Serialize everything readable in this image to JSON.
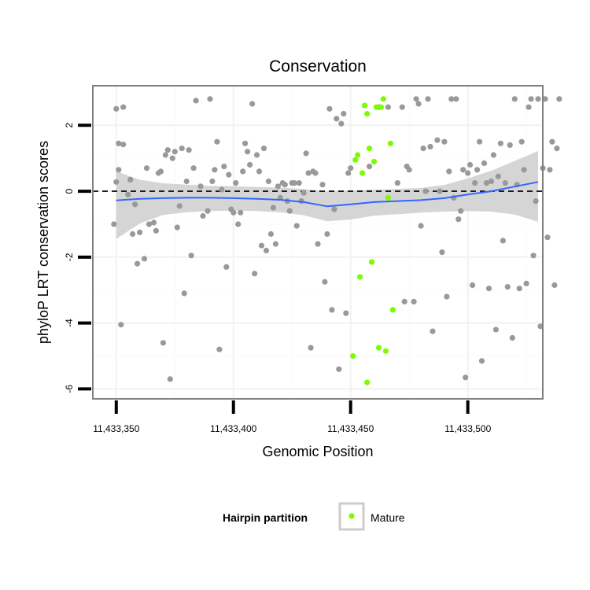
{
  "chart_data": {
    "type": "scatter",
    "title": "Conservation",
    "xlabel": "Genomic Position",
    "ylabel": "phyloP LRT conservation scores",
    "xlim": [
      11433340,
      11433532
    ],
    "ylim": [
      -6.3,
      3.2
    ],
    "x_ticks": [
      11433350,
      11433400,
      11433450,
      11433500
    ],
    "x_tick_labels": [
      "11,433,350",
      "11,433,400",
      "11,433,450",
      "11,433,500"
    ],
    "y_ticks": [
      2,
      0,
      -2,
      -4,
      -6
    ],
    "y_tick_labels": [
      "2",
      "0",
      "-2",
      "-4",
      "-6"
    ],
    "reference_line": {
      "y": 0,
      "style": "dashed"
    },
    "grid": true,
    "legend": {
      "title": "Hairpin partition",
      "position": "bottom",
      "entries": [
        {
          "label": "Mature",
          "color": "#7cfc00"
        }
      ]
    },
    "colors": {
      "other": "#999999",
      "mature": "#7cfc00",
      "smooth": "#3366ff",
      "band": "#d3d3d3"
    },
    "smooth": {
      "x": [
        11433350,
        11433360,
        11433370,
        11433380,
        11433390,
        11433400,
        11433410,
        11433420,
        11433430,
        11433440,
        11433450,
        11433460,
        11433470,
        11433480,
        11433490,
        11433500,
        11433510,
        11433520,
        11433530
      ],
      "y": [
        -0.28,
        -0.23,
        -0.21,
        -0.2,
        -0.2,
        -0.21,
        -0.23,
        -0.26,
        -0.33,
        -0.46,
        -0.4,
        -0.33,
        -0.3,
        -0.27,
        -0.21,
        -0.1,
        0.0,
        0.14,
        0.28
      ],
      "upper": [
        0.6,
        0.35,
        0.24,
        0.2,
        0.16,
        0.15,
        0.13,
        0.11,
        0.07,
        -0.01,
        0.02,
        0.05,
        0.07,
        0.1,
        0.19,
        0.39,
        0.62,
        0.92,
        1.22
      ],
      "lower": [
        -1.45,
        -0.98,
        -0.72,
        -0.64,
        -0.6,
        -0.59,
        -0.6,
        -0.64,
        -0.73,
        -0.91,
        -0.86,
        -0.74,
        -0.7,
        -0.65,
        -0.62,
        -0.6,
        -0.62,
        -0.71,
        -0.93
      ]
    },
    "series": [
      {
        "group": "other",
        "points": [
          [
            11433350,
            2.5
          ],
          [
            11433353,
            2.55
          ],
          [
            11433351,
            1.45
          ],
          [
            11433353,
            1.42
          ],
          [
            11433351,
            0.65
          ],
          [
            11433350,
            0.28
          ],
          [
            11433349,
            -1.0
          ],
          [
            11433352,
            -4.05
          ],
          [
            11433355,
            -0.1
          ],
          [
            11433356,
            0.35
          ],
          [
            11433358,
            -0.4
          ],
          [
            11433357,
            -1.3
          ],
          [
            11433359,
            -2.2
          ],
          [
            11433360,
            -1.25
          ],
          [
            11433362,
            -2.05
          ],
          [
            11433363,
            0.7
          ],
          [
            11433364,
            -1.0
          ],
          [
            11433366,
            -0.95
          ],
          [
            11433367,
            -1.2
          ],
          [
            11433368,
            0.55
          ],
          [
            11433369,
            0.6
          ],
          [
            11433370,
            -4.6
          ],
          [
            11433371,
            1.1
          ],
          [
            11433372,
            1.25
          ],
          [
            11433373,
            -5.7
          ],
          [
            11433374,
            1.0
          ],
          [
            11433375,
            1.2
          ],
          [
            11433376,
            -1.1
          ],
          [
            11433377,
            -0.45
          ],
          [
            11433378,
            1.3
          ],
          [
            11433379,
            -3.1
          ],
          [
            11433380,
            0.3
          ],
          [
            11433381,
            1.25
          ],
          [
            11433382,
            -1.95
          ],
          [
            11433383,
            0.7
          ],
          [
            11433384,
            2.75
          ],
          [
            11433386,
            0.15
          ],
          [
            11433387,
            -0.75
          ],
          [
            11433389,
            -0.6
          ],
          [
            11433390,
            2.8
          ],
          [
            11433391,
            0.3
          ],
          [
            11433392,
            0.65
          ],
          [
            11433393,
            1.5
          ],
          [
            11433394,
            -4.8
          ],
          [
            11433395,
            0.05
          ],
          [
            11433396,
            0.75
          ],
          [
            11433397,
            -2.3
          ],
          [
            11433398,
            0.5
          ],
          [
            11433399,
            -0.55
          ],
          [
            11433400,
            -0.65
          ],
          [
            11433401,
            0.25
          ],
          [
            11433402,
            -1.0
          ],
          [
            11433403,
            -0.65
          ],
          [
            11433404,
            0.6
          ],
          [
            11433405,
            1.45
          ],
          [
            11433406,
            1.2
          ],
          [
            11433407,
            0.8
          ],
          [
            11433408,
            2.65
          ],
          [
            11433409,
            -2.5
          ],
          [
            11433410,
            1.1
          ],
          [
            11433411,
            0.6
          ],
          [
            11433412,
            -1.65
          ],
          [
            11433413,
            1.3
          ],
          [
            11433414,
            -1.8
          ],
          [
            11433415,
            0.3
          ],
          [
            11433416,
            -1.3
          ],
          [
            11433417,
            -0.5
          ],
          [
            11433418,
            -1.6
          ],
          [
            11433419,
            0.15
          ],
          [
            11433420,
            -0.2
          ],
          [
            11433421,
            0.25
          ],
          [
            11433422,
            0.2
          ],
          [
            11433423,
            -0.3
          ],
          [
            11433424,
            -0.6
          ],
          [
            11433425,
            0.25
          ],
          [
            11433426,
            0.25
          ],
          [
            11433427,
            -1.05
          ],
          [
            11433428,
            0.25
          ],
          [
            11433429,
            -0.3
          ],
          [
            11433430,
            -0.05
          ],
          [
            11433431,
            1.15
          ],
          [
            11433432,
            0.55
          ],
          [
            11433433,
            -4.75
          ],
          [
            11433434,
            0.6
          ],
          [
            11433435,
            0.55
          ],
          [
            11433436,
            -1.6
          ],
          [
            11433438,
            0.2
          ],
          [
            11433439,
            -2.75
          ],
          [
            11433440,
            -1.3
          ],
          [
            11433441,
            2.5
          ],
          [
            11433442,
            -3.6
          ],
          [
            11433443,
            -0.55
          ],
          [
            11433444,
            2.2
          ],
          [
            11433445,
            -5.4
          ],
          [
            11433446,
            2.05
          ],
          [
            11433447,
            2.35
          ],
          [
            11433448,
            -3.7
          ],
          [
            11433449,
            0.55
          ],
          [
            11433450,
            0.7
          ],
          [
            11433458,
            0.75
          ],
          [
            11433462,
            2.55
          ],
          [
            11433466,
            2.55
          ],
          [
            11433470,
            0.25
          ],
          [
            11433472,
            2.55
          ],
          [
            11433473,
            -3.35
          ],
          [
            11433474,
            0.75
          ],
          [
            11433475,
            0.65
          ],
          [
            11433477,
            -3.35
          ],
          [
            11433478,
            2.8
          ],
          [
            11433479,
            2.65
          ],
          [
            11433480,
            -1.05
          ],
          [
            11433481,
            1.3
          ],
          [
            11433482,
            0.0
          ],
          [
            11433483,
            2.8
          ],
          [
            11433484,
            1.35
          ],
          [
            11433485,
            -4.25
          ],
          [
            11433487,
            1.55
          ],
          [
            11433488,
            0.0
          ],
          [
            11433489,
            -1.85
          ],
          [
            11433490,
            1.5
          ],
          [
            11433491,
            -3.2
          ],
          [
            11433492,
            0.6
          ],
          [
            11433493,
            2.8
          ],
          [
            11433494,
            -0.2
          ],
          [
            11433495,
            2.8
          ],
          [
            11433496,
            -0.85
          ],
          [
            11433497,
            -0.6
          ],
          [
            11433498,
            0.65
          ],
          [
            11433499,
            -5.65
          ],
          [
            11433500,
            0.55
          ],
          [
            11433501,
            0.8
          ],
          [
            11433502,
            -2.85
          ],
          [
            11433503,
            0.25
          ],
          [
            11433504,
            0.65
          ],
          [
            11433505,
            1.5
          ],
          [
            11433506,
            -5.15
          ],
          [
            11433507,
            0.85
          ],
          [
            11433508,
            0.25
          ],
          [
            11433509,
            -2.95
          ],
          [
            11433510,
            0.3
          ],
          [
            11433511,
            1.1
          ],
          [
            11433512,
            -4.2
          ],
          [
            11433513,
            0.45
          ],
          [
            11433514,
            1.45
          ],
          [
            11433515,
            -1.5
          ],
          [
            11433516,
            0.25
          ],
          [
            11433517,
            -2.9
          ],
          [
            11433518,
            1.4
          ],
          [
            11433519,
            -4.45
          ],
          [
            11433520,
            2.8
          ],
          [
            11433521,
            0.2
          ],
          [
            11433522,
            -2.95
          ],
          [
            11433523,
            1.5
          ],
          [
            11433524,
            0.65
          ],
          [
            11433525,
            -2.8
          ],
          [
            11433526,
            2.55
          ],
          [
            11433527,
            2.8
          ],
          [
            11433528,
            -1.95
          ],
          [
            11433529,
            -0.3
          ],
          [
            11433530,
            2.8
          ],
          [
            11433531,
            -4.1
          ],
          [
            11433532,
            0.7
          ],
          [
            11433533,
            2.8
          ],
          [
            11433534,
            -1.4
          ],
          [
            11433535,
            0.65
          ],
          [
            11433536,
            1.5
          ],
          [
            11433537,
            -2.85
          ],
          [
            11433538,
            1.3
          ],
          [
            11433539,
            2.8
          ]
        ]
      },
      {
        "group": "mature",
        "name": "Mature",
        "points": [
          [
            11433453,
            1.1
          ],
          [
            11433452,
            0.95
          ],
          [
            11433455,
            0.55
          ],
          [
            11433454,
            -2.6
          ],
          [
            11433451,
            -5.0
          ],
          [
            11433456,
            2.6
          ],
          [
            11433457,
            2.35
          ],
          [
            11433458,
            1.3
          ],
          [
            11433459,
            -2.15
          ],
          [
            11433460,
            0.9
          ],
          [
            11433461,
            2.55
          ],
          [
            11433462,
            -4.75
          ],
          [
            11433463,
            2.55
          ],
          [
            11433464,
            2.8
          ],
          [
            11433465,
            -4.85
          ],
          [
            11433466,
            -0.2
          ],
          [
            11433467,
            1.45
          ],
          [
            11433468,
            -3.6
          ],
          [
            11433457,
            -5.8
          ]
        ]
      }
    ]
  }
}
